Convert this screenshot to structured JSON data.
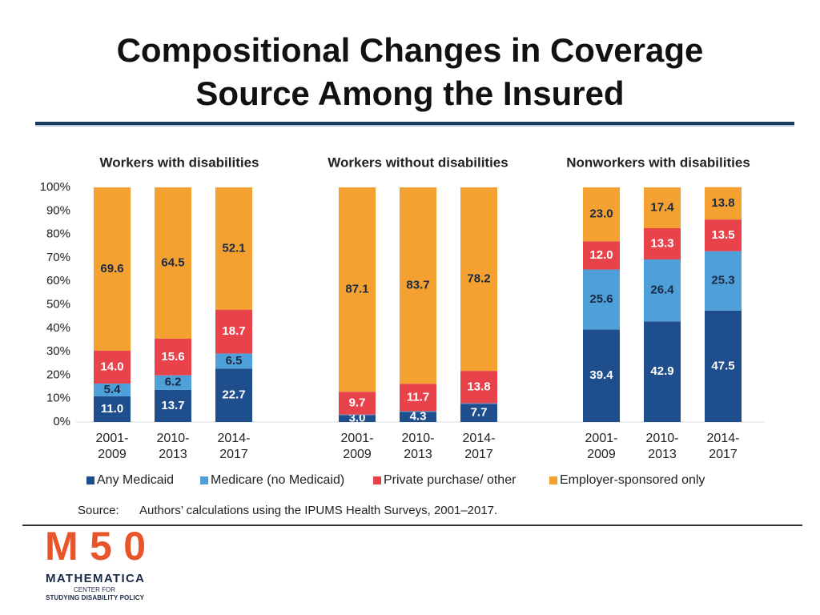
{
  "chart_data": {
    "type": "bar",
    "stacked": true,
    "title": "Compositional Changes in Coverage Source Among the Insured",
    "ylim": [
      0,
      100
    ],
    "yticks": [
      {
        "value": 0,
        "label": "0%"
      },
      {
        "value": 10,
        "label": "10%"
      },
      {
        "value": 20,
        "label": "20%"
      },
      {
        "value": 30,
        "label": "30%"
      },
      {
        "value": 40,
        "label": "40%"
      },
      {
        "value": 50,
        "label": "50%"
      },
      {
        "value": 60,
        "label": "60%"
      },
      {
        "value": 70,
        "label": "70%"
      },
      {
        "value": 80,
        "label": "80%"
      },
      {
        "value": 90,
        "label": "90%"
      },
      {
        "value": 100,
        "label": "100%"
      }
    ],
    "legend_position": "bottom",
    "series": [
      {
        "name": "Any Medicaid",
        "color": "#1f4e8c",
        "label_color": "#ffffff"
      },
      {
        "name": "Medicare (no Medicaid)",
        "color": "#4f9fd8",
        "label_color": "#1a2a44"
      },
      {
        "name": "Private purchase/ other",
        "color": "#e8434a",
        "label_color": "#ffffff"
      },
      {
        "name": "Employer-sponsored only",
        "color": "#f4a132",
        "label_color": "#1a2a44"
      }
    ],
    "panels": [
      {
        "title": "Workers with disabilities",
        "categories": [
          "2001-2009",
          "2010-2013",
          "2014-2017"
        ],
        "series": [
          {
            "values": [
              11.0,
              13.7,
              22.7
            ],
            "value_labels": [
              "11.0",
              "13.7",
              "22.7"
            ]
          },
          {
            "values": [
              5.4,
              6.2,
              6.5
            ],
            "value_labels": [
              "5.4",
              "6.2",
              "6.5"
            ]
          },
          {
            "values": [
              14.0,
              15.6,
              18.7
            ],
            "value_labels": [
              "14.0",
              "15.6",
              "18.7"
            ]
          },
          {
            "values": [
              69.6,
              64.5,
              52.1
            ],
            "value_labels": [
              "69.6",
              "64.5",
              "52.1"
            ]
          }
        ]
      },
      {
        "title": "Workers without disabilities",
        "categories": [
          "2001-2009",
          "2010-2013",
          "2014-2017"
        ],
        "series": [
          {
            "values": [
              3.0,
              4.3,
              7.7
            ],
            "value_labels": [
              "3.0",
              "4.3",
              "7.7"
            ]
          },
          {
            "values": [
              0.2,
              0.3,
              0.3
            ]
          },
          {
            "values": [
              9.7,
              11.7,
              13.8
            ],
            "value_labels": [
              "9.7",
              "11.7",
              "13.8"
            ]
          },
          {
            "values": [
              87.1,
              83.7,
              78.2
            ],
            "value_labels": [
              "87.1",
              "83.7",
              "78.2"
            ]
          }
        ]
      },
      {
        "title": "Nonworkers with disabilities",
        "categories": [
          "2001-2009",
          "2010-2013",
          "2014-2017"
        ],
        "series": [
          {
            "values": [
              39.4,
              42.9,
              47.5
            ],
            "value_labels": [
              "39.4",
              "42.9",
              "47.5"
            ]
          },
          {
            "values": [
              25.6,
              26.4,
              25.3
            ],
            "value_labels": [
              "25.6",
              "26.4",
              "25.3"
            ]
          },
          {
            "values": [
              12.0,
              13.3,
              13.5
            ],
            "value_labels": [
              "12.0",
              "13.3",
              "13.5"
            ]
          },
          {
            "values": [
              23.0,
              17.4,
              13.8
            ],
            "value_labels": [
              "23.0",
              "17.4",
              "13.8"
            ]
          }
        ]
      }
    ],
    "source_label": "Source:",
    "source": "Authors’ calculations using the IPUMS Health Surveys, 2001–2017."
  },
  "logo": {
    "mark": "M50",
    "name": "MATHEMATICA",
    "line1": "CENTER FOR",
    "line2": "STUDYING DISABILITY POLICY"
  }
}
